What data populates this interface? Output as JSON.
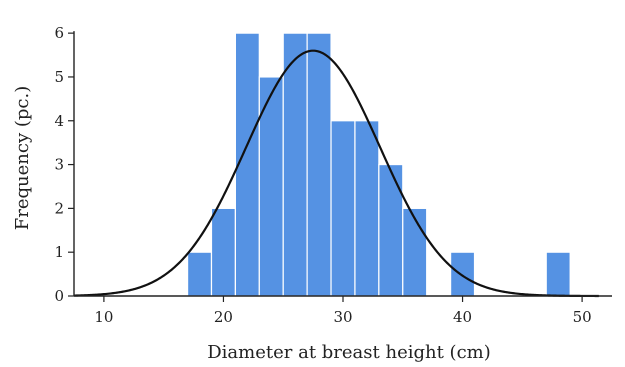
{
  "chart_data": {
    "type": "bar",
    "title": "",
    "xlabel": "Diameter at breast height (cm)",
    "ylabel": "Frequency (pc.)",
    "xlim": [
      7.5,
      52.5
    ],
    "ylim": [
      0,
      6.3
    ],
    "xticks": [
      10,
      20,
      30,
      40,
      50
    ],
    "yticks": [
      0,
      1,
      2,
      3,
      4,
      5,
      6
    ],
    "bin_width": 2,
    "bins": [
      {
        "x_start": 17,
        "x_end": 19,
        "count": 1
      },
      {
        "x_start": 19,
        "x_end": 21,
        "count": 2
      },
      {
        "x_start": 21,
        "x_end": 23,
        "count": 6
      },
      {
        "x_start": 23,
        "x_end": 25,
        "count": 5
      },
      {
        "x_start": 25,
        "x_end": 27,
        "count": 6
      },
      {
        "x_start": 27,
        "x_end": 29,
        "count": 6
      },
      {
        "x_start": 29,
        "x_end": 31,
        "count": 4
      },
      {
        "x_start": 31,
        "x_end": 33,
        "count": 4
      },
      {
        "x_start": 33,
        "x_end": 35,
        "count": 3
      },
      {
        "x_start": 35,
        "x_end": 37,
        "count": 2
      },
      {
        "x_start": 39,
        "x_end": 41,
        "count": 1
      },
      {
        "x_start": 47,
        "x_end": 49,
        "count": 1
      }
    ],
    "fit_curve": {
      "type": "normal",
      "mean": 27.5,
      "sd": 5.6,
      "peak": 5.6
    },
    "bar_color": "#5592e3",
    "curve_color": "#111111",
    "grid": false,
    "legend": "none"
  }
}
